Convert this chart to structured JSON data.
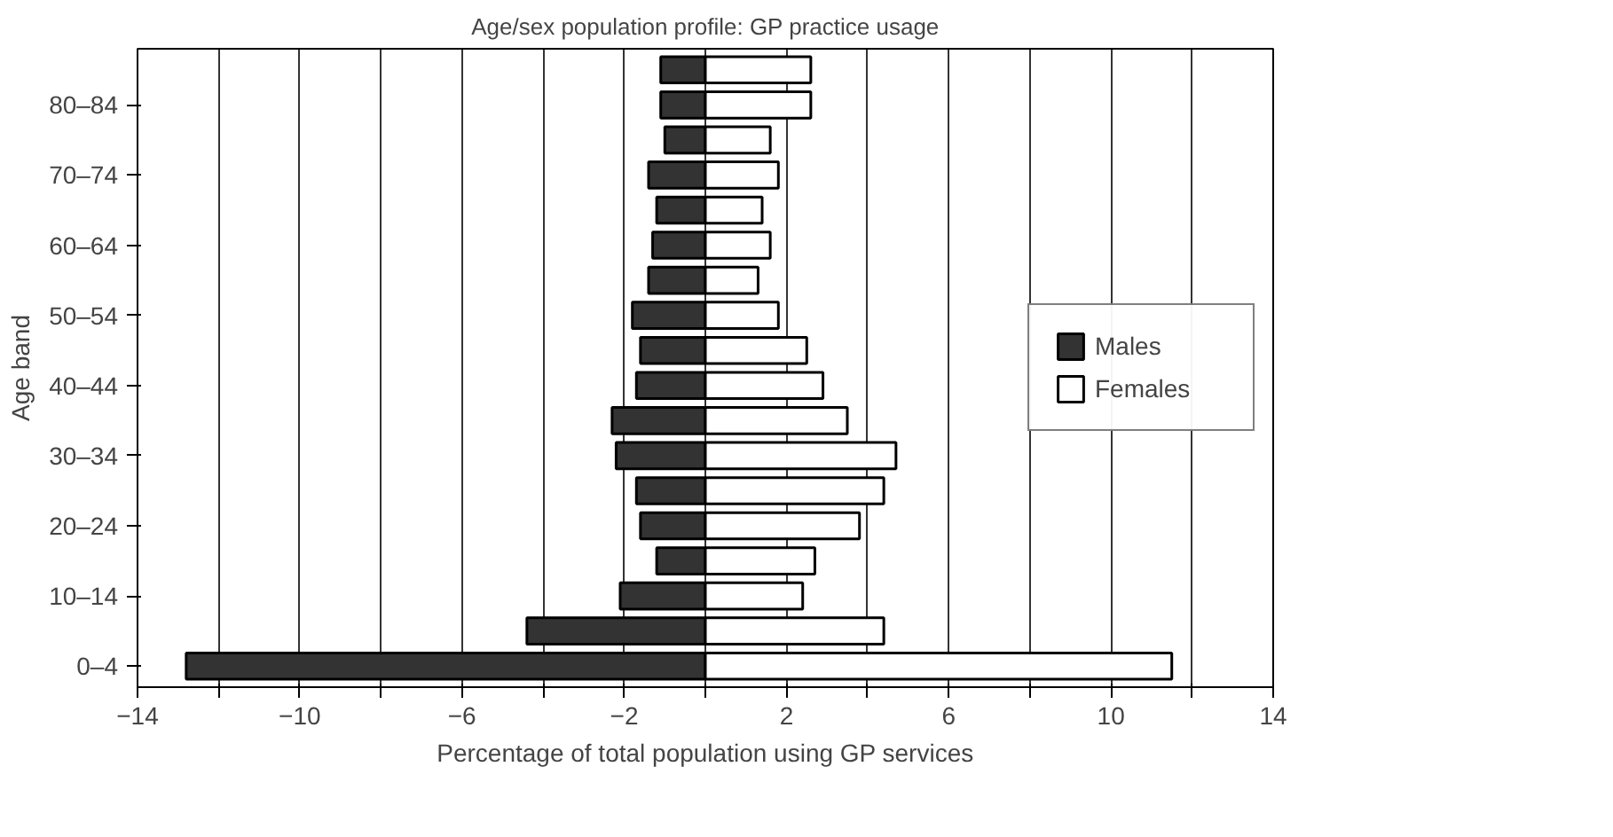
{
  "chart_data": {
    "type": "bar",
    "orientation": "horizontal",
    "title": "Age/sex population profile: GP practice usage",
    "xlabel": "Percentage of total population using GP services",
    "ylabel": "Age band",
    "categories": [
      null,
      "80–84",
      null,
      "70–74",
      null,
      "60–64",
      null,
      "50–54",
      null,
      "40–44",
      null,
      "30–34",
      null,
      "20–24",
      null,
      "10–14",
      null,
      "0–4"
    ],
    "series": [
      {
        "name": "Males",
        "color": "#333333",
        "values": [
          -1.1,
          -1.1,
          -1.0,
          -1.4,
          -1.2,
          -1.3,
          -1.4,
          -1.8,
          -1.6,
          -1.7,
          -2.3,
          -2.2,
          -1.7,
          -1.6,
          -1.2,
          -2.1,
          -4.4,
          -12.8
        ]
      },
      {
        "name": "Females",
        "color": "#ffffff",
        "values": [
          2.6,
          2.6,
          1.6,
          1.8,
          1.4,
          1.6,
          1.3,
          1.8,
          2.5,
          2.9,
          3.5,
          4.7,
          4.4,
          3.8,
          2.7,
          2.4,
          4.4,
          11.5
        ]
      }
    ],
    "xlim": [
      -14,
      14
    ],
    "xticks": [
      {
        "value": -14,
        "label": "−14"
      },
      {
        "value": -12,
        "label": null
      },
      {
        "value": -10,
        "label": "−10"
      },
      {
        "value": -8,
        "label": null
      },
      {
        "value": -6,
        "label": "−6"
      },
      {
        "value": -4,
        "label": null
      },
      {
        "value": -2,
        "label": "−2"
      },
      {
        "value": 0,
        "label": null
      },
      2,
      {
        "value": 4,
        "label": null
      },
      6,
      {
        "value": 8,
        "label": null
      },
      10,
      {
        "value": 12,
        "label": null
      },
      14
    ],
    "grid": "x",
    "legend": "right",
    "stacked": true
  }
}
